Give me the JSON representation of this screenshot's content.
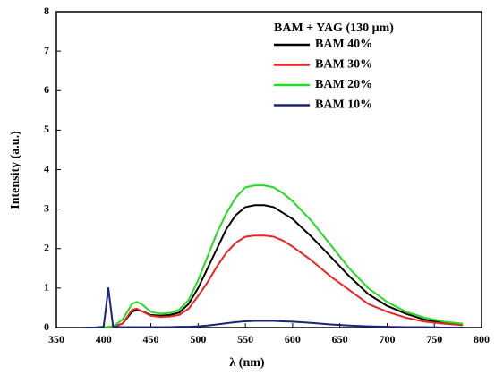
{
  "chart_data": {
    "type": "line",
    "x_label": "λ (nm)",
    "y_label": "Intensity (a.u.)",
    "legend_title": "BAM + YAG (130 μm)",
    "x": [
      380,
      390,
      400,
      405,
      410,
      420,
      430,
      435,
      440,
      450,
      460,
      470,
      480,
      490,
      500,
      510,
      520,
      530,
      540,
      550,
      560,
      570,
      580,
      590,
      600,
      620,
      640,
      660,
      680,
      700,
      720,
      740,
      760,
      780
    ],
    "series": [
      {
        "name": "BAM 40%",
        "color": "#000000",
        "values": [
          0,
          0,
          0,
          0.01,
          0.02,
          0.1,
          0.4,
          0.45,
          0.42,
          0.32,
          0.3,
          0.32,
          0.38,
          0.6,
          1.0,
          1.5,
          2.0,
          2.5,
          2.85,
          3.05,
          3.1,
          3.1,
          3.05,
          2.9,
          2.75,
          2.3,
          1.8,
          1.3,
          0.85,
          0.55,
          0.35,
          0.2,
          0.12,
          0.08
        ]
      },
      {
        "name": "BAM 30%",
        "color": "#ee2222",
        "values": [
          0,
          0,
          0,
          0.01,
          0.02,
          0.1,
          0.45,
          0.48,
          0.42,
          0.3,
          0.27,
          0.28,
          0.32,
          0.48,
          0.8,
          1.15,
          1.55,
          1.9,
          2.15,
          2.3,
          2.33,
          2.33,
          2.3,
          2.2,
          2.05,
          1.7,
          1.3,
          0.95,
          0.6,
          0.4,
          0.25,
          0.15,
          0.1,
          0.06
        ]
      },
      {
        "name": "BAM 20%",
        "color": "#22dd22",
        "values": [
          0,
          0,
          0,
          0.02,
          0.03,
          0.2,
          0.6,
          0.65,
          0.6,
          0.4,
          0.35,
          0.37,
          0.45,
          0.7,
          1.2,
          1.8,
          2.4,
          2.9,
          3.3,
          3.55,
          3.6,
          3.6,
          3.55,
          3.4,
          3.2,
          2.7,
          2.1,
          1.5,
          1.0,
          0.65,
          0.4,
          0.25,
          0.15,
          0.1
        ]
      },
      {
        "name": "BAM 10%",
        "color": "#1a237e",
        "values": [
          0,
          0,
          0.02,
          1.0,
          0.02,
          0.01,
          0.01,
          0.01,
          0.01,
          0.01,
          0.01,
          0.01,
          0.02,
          0.02,
          0.03,
          0.05,
          0.08,
          0.11,
          0.14,
          0.16,
          0.17,
          0.17,
          0.17,
          0.16,
          0.15,
          0.12,
          0.08,
          0.05,
          0.03,
          0.02,
          0.01,
          0.01,
          0,
          0
        ]
      }
    ],
    "xlim": [
      350,
      800
    ],
    "xticks": [
      350,
      400,
      450,
      500,
      550,
      600,
      650,
      700,
      750,
      800
    ],
    "ylim": [
      0,
      8
    ],
    "yticks": [
      0,
      1,
      2,
      3,
      4,
      5,
      6,
      7,
      8
    ]
  }
}
